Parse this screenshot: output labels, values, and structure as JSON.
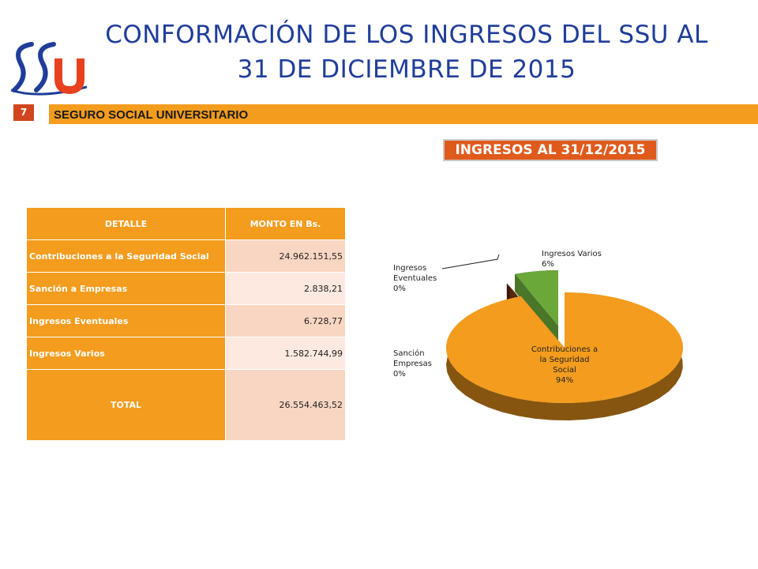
{
  "header": {
    "title_line1": "CONFORMACIÓN DE LOS INGRESOS DEL SSU AL",
    "title_line2": "31 DE DICIEMBRE DE 2015",
    "band_label": "SEGURO SOCIAL UNIVERSITARIO",
    "page_number": "7",
    "subtitle": "INGRESOS AL 31/12/2015"
  },
  "colors": {
    "title": "#1f3d99",
    "accent": "#f39c1e",
    "red": "#d1461e",
    "logo_blue": "#1f3d99",
    "logo_red": "#e8411f"
  },
  "table": {
    "headers": [
      "DETALLE",
      "MONTO EN Bs."
    ],
    "rows": [
      {
        "label": "Contribuciones a la Seguridad Social",
        "value": "24.962.151,55"
      },
      {
        "label": "Sanción a Empresas",
        "value": "2.838,21"
      },
      {
        "label": "Ingresos Eventuales",
        "value": "6.728,77"
      },
      {
        "label": "Ingresos Varios",
        "value": "1.582.744,99"
      }
    ],
    "total_label": "TOTAL",
    "total_value": "26.554.463,52"
  },
  "chart_data": {
    "type": "pie",
    "title": "",
    "categories": [
      "Contribuciones a la Seguridad Social",
      "Sanción Empresas",
      "Ingresos Eventuales",
      "Ingresos Varios"
    ],
    "values": [
      24962151.55,
      2838.21,
      6728.77,
      1582744.99
    ],
    "percent_labels": [
      "94%",
      "0%",
      "0%",
      "6%"
    ],
    "label_lines": [
      [
        "Contribuciones a",
        "la Seguridad",
        "Social",
        "94%"
      ],
      [
        "Sanción",
        "Empresas",
        "0%"
      ],
      [
        "Ingresos",
        "Eventuales",
        "0%"
      ],
      [
        "Ingresos Varios",
        "6%"
      ]
    ],
    "colors": [
      "#f39c1e",
      "#7a3a10",
      "#5a1a10",
      "#6aa83a"
    ],
    "legend": "none",
    "style": "3d"
  }
}
